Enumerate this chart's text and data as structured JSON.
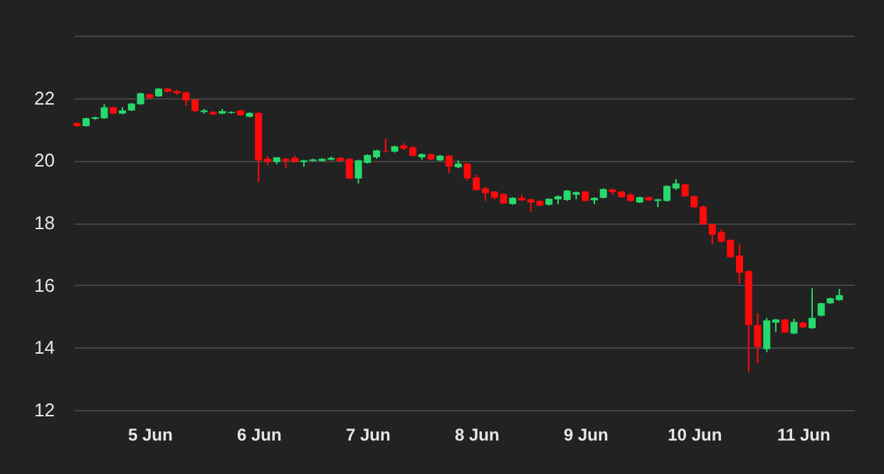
{
  "chart_data": {
    "type": "candlestick",
    "x": [
      "--06-04T08:00",
      "--06-04T10:00",
      "--06-04T12:00",
      "--06-04T14:00",
      "--06-04T16:00",
      "--06-04T18:00",
      "--06-04T20:00",
      "--06-04T22:00",
      "--06-05T00:00",
      "--06-05T02:00",
      "--06-05T04:00",
      "--06-05T06:00",
      "--06-05T08:00",
      "--06-05T10:00",
      "--06-05T12:00",
      "--06-05T14:00",
      "--06-05T16:00",
      "--06-05T18:00",
      "--06-05T20:00",
      "--06-05T22:00",
      "--06-06T00:00",
      "--06-06T02:00",
      "--06-06T04:00",
      "--06-06T06:00",
      "--06-06T08:00",
      "--06-06T10:00",
      "--06-06T12:00",
      "--06-06T14:00",
      "--06-06T16:00",
      "--06-06T18:00",
      "--06-06T20:00",
      "--06-06T22:00",
      "--06-07T00:00",
      "--06-07T02:00",
      "--06-07T04:00",
      "--06-07T06:00",
      "--06-07T08:00",
      "--06-07T10:00",
      "--06-07T12:00",
      "--06-07T14:00",
      "--06-07T16:00",
      "--06-07T18:00",
      "--06-07T20:00",
      "--06-07T22:00",
      "--06-08T00:00",
      "--06-08T02:00",
      "--06-08T04:00",
      "--06-08T06:00",
      "--06-08T08:00",
      "--06-08T10:00",
      "--06-08T12:00",
      "--06-08T14:00",
      "--06-08T16:00",
      "--06-08T18:00",
      "--06-08T20:00",
      "--06-08T22:00",
      "--06-09T00:00",
      "--06-09T02:00",
      "--06-09T04:00",
      "--06-09T06:00",
      "--06-09T08:00",
      "--06-09T10:00",
      "--06-09T12:00",
      "--06-09T14:00",
      "--06-09T16:00",
      "--06-09T18:00",
      "--06-09T20:00",
      "--06-09T22:00",
      "--06-10T00:00",
      "--06-10T02:00",
      "--06-10T04:00",
      "--06-10T06:00",
      "--06-10T08:00",
      "--06-10T10:00",
      "--06-10T12:00",
      "--06-10T14:00",
      "--06-10T16:00",
      "--06-10T18:00",
      "--06-10T20:00",
      "--06-10T22:00",
      "--06-11T00:00",
      "--06-11T02:00",
      "--06-11T04:00",
      "--06-11T06:00",
      "--06-11T08:00"
    ],
    "ohlc": [
      [
        21.2,
        21.22,
        21.08,
        21.1
      ],
      [
        21.1,
        21.37,
        21.08,
        21.35
      ],
      [
        21.33,
        21.4,
        21.3,
        21.38
      ],
      [
        21.35,
        21.8,
        21.33,
        21.7
      ],
      [
        21.7,
        21.72,
        21.48,
        21.5
      ],
      [
        21.5,
        21.7,
        21.48,
        21.6
      ],
      [
        21.6,
        21.84,
        21.58,
        21.82
      ],
      [
        21.8,
        22.17,
        21.78,
        22.15
      ],
      [
        22.12,
        22.14,
        21.98,
        22.0
      ],
      [
        22.05,
        22.32,
        22.04,
        22.3
      ],
      [
        22.3,
        22.32,
        22.18,
        22.2
      ],
      [
        22.22,
        22.26,
        22.1,
        22.15
      ],
      [
        22.18,
        22.2,
        21.75,
        21.92
      ],
      [
        21.95,
        21.97,
        21.56,
        21.58
      ],
      [
        21.55,
        21.65,
        21.5,
        21.6
      ],
      [
        21.55,
        21.58,
        21.45,
        21.48
      ],
      [
        21.5,
        21.65,
        21.48,
        21.58
      ],
      [
        21.52,
        21.57,
        21.5,
        21.55
      ],
      [
        21.6,
        21.62,
        21.43,
        21.45
      ],
      [
        21.4,
        21.54,
        21.38,
        21.52
      ],
      [
        21.52,
        21.55,
        19.3,
        20.0
      ],
      [
        20.05,
        20.15,
        19.85,
        19.95
      ],
      [
        19.95,
        20.1,
        19.88,
        20.1
      ],
      [
        20.05,
        20.08,
        19.76,
        19.98
      ],
      [
        20.08,
        20.15,
        19.93,
        19.95
      ],
      [
        19.95,
        20.02,
        19.8,
        20.0
      ],
      [
        19.98,
        20.05,
        19.96,
        20.03
      ],
      [
        19.98,
        20.07,
        19.96,
        20.05
      ],
      [
        20.02,
        20.12,
        20.0,
        20.08
      ],
      [
        20.08,
        20.1,
        19.96,
        19.98
      ],
      [
        20.05,
        20.07,
        19.4,
        19.42
      ],
      [
        19.42,
        20.02,
        19.26,
        20.0
      ],
      [
        19.92,
        20.19,
        19.9,
        20.17
      ],
      [
        20.1,
        20.34,
        20.05,
        20.32
      ],
      [
        20.3,
        20.7,
        20.25,
        20.28
      ],
      [
        20.28,
        20.47,
        20.25,
        20.45
      ],
      [
        20.48,
        20.55,
        20.33,
        20.38
      ],
      [
        20.42,
        20.45,
        20.12,
        20.15
      ],
      [
        20.1,
        20.22,
        20.02,
        20.2
      ],
      [
        20.2,
        20.22,
        20.0,
        20.03
      ],
      [
        20.0,
        20.17,
        19.98,
        20.15
      ],
      [
        20.15,
        20.17,
        19.6,
        19.8
      ],
      [
        19.78,
        20.0,
        19.75,
        19.9
      ],
      [
        19.9,
        19.92,
        19.35,
        19.42
      ],
      [
        19.45,
        19.55,
        19.03,
        19.05
      ],
      [
        19.1,
        19.15,
        18.7,
        18.95
      ],
      [
        19.0,
        19.02,
        18.75,
        18.8
      ],
      [
        18.92,
        18.95,
        18.6,
        18.62
      ],
      [
        18.6,
        18.82,
        18.58,
        18.8
      ],
      [
        18.8,
        18.9,
        18.7,
        18.72
      ],
      [
        18.75,
        18.78,
        18.35,
        18.65
      ],
      [
        18.7,
        18.72,
        18.52,
        18.55
      ],
      [
        18.58,
        18.78,
        18.55,
        18.77
      ],
      [
        18.75,
        18.88,
        18.6,
        18.85
      ],
      [
        18.73,
        19.05,
        18.7,
        19.03
      ],
      [
        18.9,
        19.0,
        18.75,
        18.98
      ],
      [
        19.0,
        19.02,
        18.68,
        18.7
      ],
      [
        18.72,
        18.82,
        18.6,
        18.8
      ],
      [
        18.8,
        19.1,
        18.78,
        19.08
      ],
      [
        19.07,
        19.09,
        18.9,
        18.98
      ],
      [
        19.0,
        19.02,
        18.8,
        18.82
      ],
      [
        18.9,
        18.95,
        18.68,
        18.7
      ],
      [
        18.65,
        18.84,
        18.63,
        18.82
      ],
      [
        18.82,
        18.84,
        18.7,
        18.72
      ],
      [
        18.7,
        18.77,
        18.5,
        18.75
      ],
      [
        18.7,
        19.2,
        18.68,
        19.18
      ],
      [
        19.1,
        19.4,
        19.05,
        19.26
      ],
      [
        19.23,
        19.25,
        18.83,
        18.85
      ],
      [
        18.85,
        18.87,
        18.46,
        18.5
      ],
      [
        18.52,
        18.55,
        17.93,
        17.95
      ],
      [
        17.95,
        17.98,
        17.32,
        17.62
      ],
      [
        17.7,
        17.8,
        17.37,
        17.4
      ],
      [
        17.45,
        17.47,
        16.88,
        16.9
      ],
      [
        16.95,
        17.3,
        16.05,
        16.4
      ],
      [
        16.45,
        16.48,
        13.2,
        14.72
      ],
      [
        14.72,
        15.1,
        13.5,
        14.02
      ],
      [
        13.95,
        14.95,
        13.85,
        14.87
      ],
      [
        14.8,
        14.92,
        14.5,
        14.9
      ],
      [
        14.9,
        14.92,
        14.46,
        14.48
      ],
      [
        14.45,
        14.92,
        14.43,
        14.82
      ],
      [
        14.8,
        14.83,
        14.63,
        14.65
      ],
      [
        14.62,
        15.9,
        14.6,
        14.95
      ],
      [
        15.02,
        15.44,
        15.0,
        15.42
      ],
      [
        15.42,
        15.6,
        15.4,
        15.58
      ],
      [
        15.52,
        15.88,
        15.5,
        15.68
      ]
    ],
    "colors": [
      "#ff0a0a",
      "#27d96c",
      "#27d96c",
      "#27d96c",
      "#ff0a0a",
      "#27d96c",
      "#27d96c",
      "#27d96c",
      "#ff0a0a",
      "#27d96c",
      "#ff0a0a",
      "#ff0a0a",
      "#ff0a0a",
      "#ff0a0a",
      "#27d96c",
      "#ff0a0a",
      "#27d96c",
      "#27d96c",
      "#ff0a0a",
      "#27d96c",
      "#ff0a0a",
      "#ff0a0a",
      "#27d96c",
      "#ff0a0a",
      "#ff0a0a",
      "#27d96c",
      "#27d96c",
      "#27d96c",
      "#27d96c",
      "#ff0a0a",
      "#ff0a0a",
      "#27d96c",
      "#27d96c",
      "#27d96c",
      "#ff0a0a",
      "#27d96c",
      "#ff0a0a",
      "#ff0a0a",
      "#27d96c",
      "#ff0a0a",
      "#27d96c",
      "#ff0a0a",
      "#27d96c",
      "#ff0a0a",
      "#ff0a0a",
      "#ff0a0a",
      "#ff0a0a",
      "#ff0a0a",
      "#27d96c",
      "#ff0a0a",
      "#ff0a0a",
      "#ff0a0a",
      "#27d96c",
      "#27d96c",
      "#27d96c",
      "#27d96c",
      "#ff0a0a",
      "#27d96c",
      "#27d96c",
      "#ff0a0a",
      "#ff0a0a",
      "#ff0a0a",
      "#27d96c",
      "#ff0a0a",
      "#27d96c",
      "#27d96c",
      "#27d96c",
      "#ff0a0a",
      "#ff0a0a",
      "#ff0a0a",
      "#ff0a0a",
      "#ff0a0a",
      "#ff0a0a",
      "#ff0a0a",
      "#ff0a0a",
      "#ff0a0a",
      "#27d96c",
      "#27d96c",
      "#ff0a0a",
      "#27d96c",
      "#ff0a0a",
      "#27d96c",
      "#27d96c",
      "#27d96c",
      "#27d96c"
    ],
    "xlim": [
      "--06-04T07:20",
      "--06-11T11:15"
    ],
    "xticks": [
      {
        "value": "--06-05",
        "label": "5 Jun"
      },
      {
        "value": "--06-06",
        "label": "6 Jun"
      },
      {
        "value": "--06-07",
        "label": "7 Jun"
      },
      {
        "value": "--06-08",
        "label": "8 Jun"
      },
      {
        "value": "--06-09",
        "label": "9 Jun"
      },
      {
        "value": "--06-10",
        "label": "10 Jun"
      },
      {
        "value": "--06-11",
        "label": "11 Jun"
      }
    ],
    "ylim": [
      12,
      24
    ],
    "yticks": [
      12,
      14,
      16,
      18,
      20,
      22,
      {
        "value": 24,
        "label": null
      }
    ],
    "grid": "y"
  }
}
